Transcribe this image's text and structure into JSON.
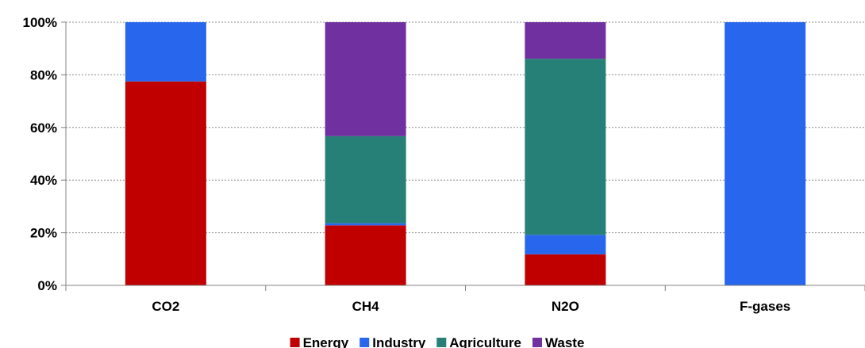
{
  "chart_data": {
    "type": "bar",
    "stacked": true,
    "percent_axis": true,
    "categories": [
      "CO2",
      "CH4",
      "N2O",
      "F-gases"
    ],
    "series": [
      {
        "name": "Energy",
        "color": "#c00000",
        "values": [
          77.5,
          22.8,
          11.8,
          0
        ]
      },
      {
        "name": "Industry",
        "color": "#2866ee",
        "values": [
          22.5,
          0.8,
          7.4,
          100
        ]
      },
      {
        "name": "Agriculture",
        "color": "#278077",
        "values": [
          0,
          33.1,
          66.9,
          0
        ]
      },
      {
        "name": "Waste",
        "color": "#7030a0",
        "values": [
          0,
          43.3,
          13.9,
          0
        ]
      }
    ],
    "ylim": [
      0,
      100
    ],
    "yticks": [
      "0%",
      "20%",
      "40%",
      "60%",
      "80%",
      "100%"
    ],
    "ytick_values": [
      0,
      20,
      40,
      60,
      80,
      100
    ],
    "grid": true,
    "grid_style": "dotted",
    "legend_position": "bottom",
    "title": "",
    "xlabel": "",
    "ylabel": ""
  }
}
